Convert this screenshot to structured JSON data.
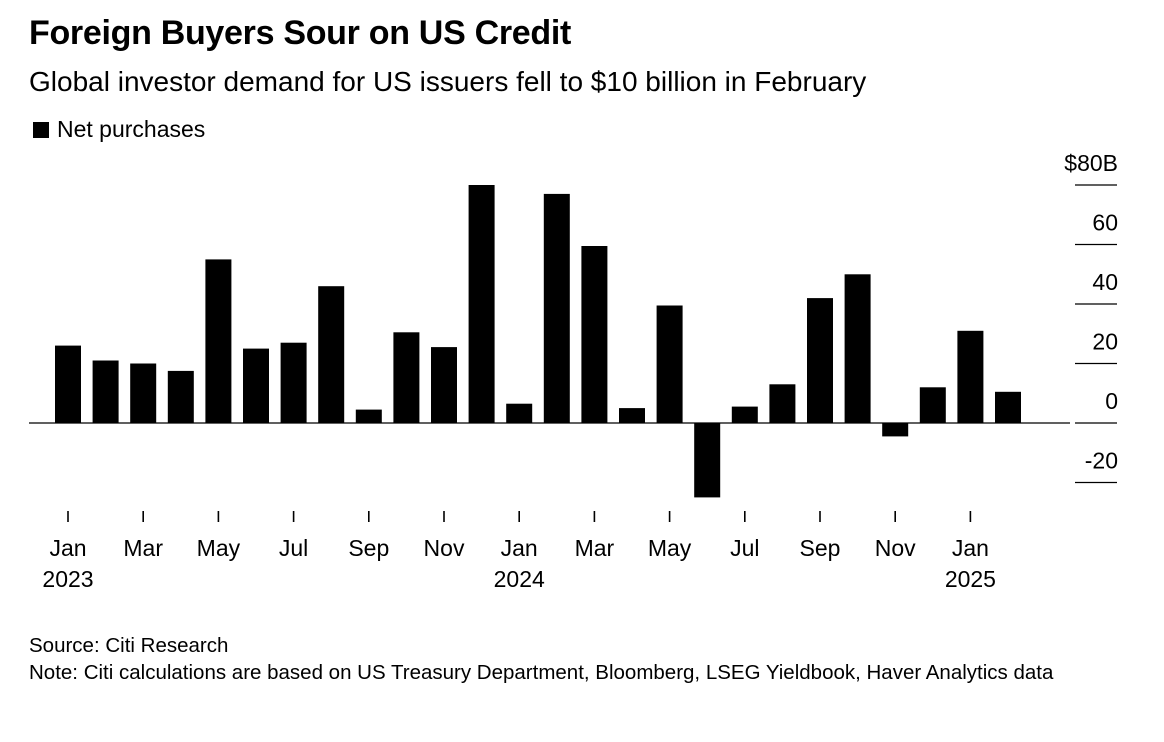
{
  "title": "Foreign Buyers Sour on US Credit",
  "subtitle": "Global investor demand for US issuers fell to $10 billion in February",
  "legend": {
    "label": "Net purchases",
    "color": "#000000"
  },
  "chart_data": {
    "type": "bar",
    "series": [
      {
        "name": "Net purchases",
        "color": "#000000",
        "values": [
          26,
          21,
          20,
          17.5,
          55,
          25,
          27,
          46,
          4.5,
          30.5,
          25.5,
          80,
          6.5,
          77,
          59.5,
          5,
          39.5,
          -25,
          5.5,
          13,
          42,
          50,
          -4.5,
          12,
          31,
          10.5
        ]
      }
    ],
    "categories": [
      "Jan 2023",
      "Feb 2023",
      "Mar 2023",
      "Apr 2023",
      "May 2023",
      "Jun 2023",
      "Jul 2023",
      "Aug 2023",
      "Sep 2023",
      "Oct 2023",
      "Nov 2023",
      "Dec 2023",
      "Jan 2024",
      "Feb 2024",
      "Mar 2024",
      "Apr 2024",
      "May 2024",
      "Jun 2024",
      "Jul 2024",
      "Aug 2024",
      "Sep 2024",
      "Oct 2024",
      "Nov 2024",
      "Dec 2024",
      "Jan 2025",
      "Feb 2025"
    ],
    "x_ticks": [
      {
        "index": 0,
        "label": "Jan",
        "year": "2023"
      },
      {
        "index": 2,
        "label": "Mar",
        "year": ""
      },
      {
        "index": 4,
        "label": "May",
        "year": ""
      },
      {
        "index": 6,
        "label": "Jul",
        "year": ""
      },
      {
        "index": 8,
        "label": "Sep",
        "year": ""
      },
      {
        "index": 10,
        "label": "Nov",
        "year": ""
      },
      {
        "index": 12,
        "label": "Jan",
        "year": "2024"
      },
      {
        "index": 14,
        "label": "Mar",
        "year": ""
      },
      {
        "index": 16,
        "label": "May",
        "year": ""
      },
      {
        "index": 18,
        "label": "Jul",
        "year": ""
      },
      {
        "index": 20,
        "label": "Sep",
        "year": ""
      },
      {
        "index": 22,
        "label": "Nov",
        "year": ""
      },
      {
        "index": 24,
        "label": "Jan",
        "year": "2025"
      }
    ],
    "y_ticks": [
      {
        "value": 80,
        "label": "$80B"
      },
      {
        "value": 60,
        "label": "60"
      },
      {
        "value": 40,
        "label": "40"
      },
      {
        "value": 20,
        "label": "20"
      },
      {
        "value": 0,
        "label": "0"
      },
      {
        "value": -20,
        "label": "-20"
      }
    ],
    "ylim": [
      -20,
      80
    ],
    "y_axis_position": "right",
    "grid": false
  },
  "footer": {
    "source": "Source: Citi Research",
    "note": "Note: Citi calculations are based on US Treasury Department, Bloomberg, LSEG Yieldbook, Haver Analytics data"
  }
}
